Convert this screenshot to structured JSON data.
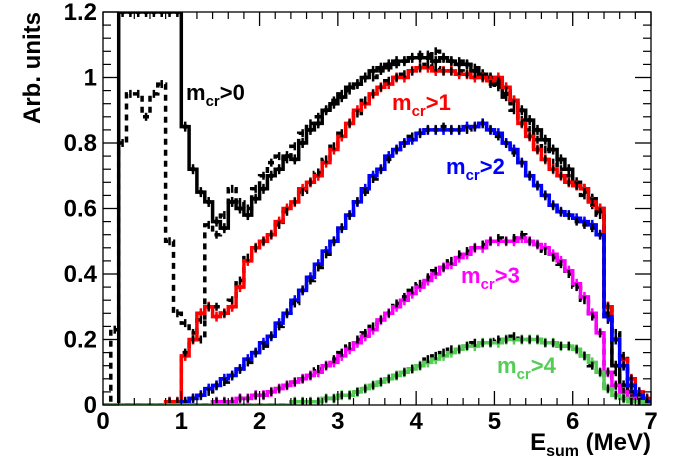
{
  "chart_data": {
    "type": "line",
    "title": "",
    "xlabel_main": "E",
    "xlabel_sub": "sum",
    "xlabel_unit": " (MeV)",
    "ylabel": "Arb. units",
    "xlim": [
      0,
      7
    ],
    "ylim": [
      0,
      1.2
    ],
    "x_ticks": [
      "0",
      "1",
      "2",
      "3",
      "4",
      "5",
      "6",
      "7"
    ],
    "y_ticks": [
      "0",
      "0.2",
      "0.4",
      "0.6",
      "0.8",
      "1",
      "1.2"
    ],
    "bin_width": 0.1,
    "bin_start": 0.0,
    "series": [
      {
        "label_main": "m",
        "label_sub": "cr",
        "label_tail": ">0",
        "color": "#000000",
        "simulation": [
          0,
          0,
          1.2,
          1.2,
          1.2,
          1.2,
          1.2,
          1.2,
          1.2,
          1.2,
          0.85,
          0.72,
          0.65,
          0.62,
          0.56,
          0.54,
          0.62,
          0.6,
          0.58,
          0.63,
          0.66,
          0.7,
          0.72,
          0.76,
          0.75,
          0.8,
          0.84,
          0.86,
          0.9,
          0.92,
          0.94,
          0.97,
          0.98,
          1.0,
          1.02,
          1.03,
          1.04,
          1.05,
          1.05,
          1.06,
          1.06,
          1.06,
          1.05,
          1.06,
          1.05,
          1.04,
          1.04,
          1.02,
          1.01,
          1.0,
          0.98,
          0.95,
          0.93,
          0.9,
          0.87,
          0.84,
          0.81,
          0.78,
          0.75,
          0.72,
          0.68,
          0.66,
          0.63,
          0.6,
          0.3,
          0.12,
          0.06,
          0.04,
          0.02,
          0.01
        ],
        "data": [
          0,
          0.23,
          0.8,
          0.95,
          0.95,
          0.88,
          0.95,
          0.98,
          0.5,
          0.28,
          0.25,
          0.22,
          0.2,
          0.55,
          0.52,
          0.58,
          0.66,
          0.62,
          0.6,
          0.66,
          0.7,
          0.74,
          0.76,
          0.75,
          0.79,
          0.83,
          0.86,
          0.88,
          0.9,
          0.93,
          0.95,
          0.96,
          0.98,
          1.0,
          1.0,
          1.02,
          1.03,
          1.04,
          1.05,
          1.06,
          1.07,
          1.07,
          1.08,
          1.06,
          1.05,
          1.05,
          1.04,
          1.03,
          1.01,
          1.0,
          0.97,
          0.94,
          0.9,
          0.87,
          0.84,
          0.81,
          0.78,
          0.74,
          0.72,
          0.7,
          0.67,
          0.64,
          0.61,
          0.58,
          0.26,
          0.1,
          0.05,
          0.03,
          0.02,
          0.01
        ]
      },
      {
        "label_main": "m",
        "label_sub": "cr",
        "label_tail": ">1",
        "color": "#ff0000",
        "simulation": [
          0,
          0,
          0,
          0,
          0,
          0,
          0,
          0,
          0.01,
          0.01,
          0.15,
          0.2,
          0.28,
          0.3,
          0.27,
          0.28,
          0.3,
          0.36,
          0.44,
          0.48,
          0.5,
          0.52,
          0.56,
          0.6,
          0.62,
          0.66,
          0.68,
          0.7,
          0.74,
          0.78,
          0.82,
          0.86,
          0.9,
          0.92,
          0.95,
          0.97,
          0.98,
          1.0,
          1.0,
          1.02,
          1.03,
          1.03,
          1.02,
          1.02,
          1.02,
          1.01,
          1.01,
          1.0,
          1.0,
          0.99,
          1.0,
          0.97,
          0.93,
          0.86,
          0.82,
          0.78,
          0.75,
          0.72,
          0.7,
          0.68,
          0.67,
          0.66,
          0.62,
          0.6,
          0.3,
          0.2,
          0.14,
          0.08,
          0.04,
          0.02
        ],
        "data": [
          0,
          0,
          0,
          0,
          0,
          0,
          0,
          0,
          0.01,
          0.01,
          0.16,
          0.2,
          0.26,
          0.3,
          0.3,
          0.28,
          0.32,
          0.38,
          0.45,
          0.48,
          0.5,
          0.52,
          0.55,
          0.59,
          0.62,
          0.65,
          0.68,
          0.71,
          0.75,
          0.79,
          0.83,
          0.86,
          0.89,
          0.93,
          0.95,
          0.97,
          0.99,
          1.0,
          1.01,
          1.02,
          1.03,
          1.04,
          1.03,
          1.02,
          1.02,
          1.02,
          1.01,
          1.01,
          1.0,
          0.98,
          0.99,
          0.96,
          0.92,
          0.86,
          0.82,
          0.78,
          0.75,
          0.72,
          0.7,
          0.68,
          0.67,
          0.65,
          0.62,
          0.59,
          0.3,
          0.22,
          0.15,
          0.08,
          0.04,
          0.02
        ]
      },
      {
        "label_main": "m",
        "label_sub": "cr",
        "label_tail": ">2",
        "color": "#0000ff",
        "simulation": [
          0,
          0,
          0,
          0,
          0,
          0,
          0,
          0,
          0,
          0,
          0.01,
          0.02,
          0.03,
          0.05,
          0.06,
          0.08,
          0.09,
          0.11,
          0.14,
          0.16,
          0.19,
          0.21,
          0.25,
          0.28,
          0.32,
          0.35,
          0.39,
          0.43,
          0.47,
          0.5,
          0.54,
          0.58,
          0.62,
          0.66,
          0.7,
          0.72,
          0.76,
          0.78,
          0.8,
          0.81,
          0.83,
          0.84,
          0.84,
          0.84,
          0.84,
          0.84,
          0.85,
          0.85,
          0.86,
          0.84,
          0.83,
          0.8,
          0.78,
          0.74,
          0.7,
          0.67,
          0.64,
          0.61,
          0.59,
          0.58,
          0.57,
          0.56,
          0.55,
          0.52,
          0.27,
          0.2,
          0.12,
          0.06,
          0.03,
          0.01
        ],
        "data": [
          0,
          0,
          0,
          0,
          0,
          0,
          0,
          0,
          0,
          0,
          0.01,
          0.02,
          0.03,
          0.04,
          0.06,
          0.07,
          0.09,
          0.11,
          0.13,
          0.16,
          0.18,
          0.21,
          0.24,
          0.28,
          0.31,
          0.35,
          0.38,
          0.42,
          0.46,
          0.5,
          0.54,
          0.58,
          0.62,
          0.65,
          0.69,
          0.72,
          0.75,
          0.78,
          0.8,
          0.82,
          0.83,
          0.84,
          0.84,
          0.85,
          0.84,
          0.84,
          0.84,
          0.85,
          0.86,
          0.84,
          0.82,
          0.8,
          0.77,
          0.74,
          0.7,
          0.67,
          0.64,
          0.61,
          0.59,
          0.58,
          0.56,
          0.55,
          0.54,
          0.52,
          0.28,
          0.2,
          0.12,
          0.06,
          0.03,
          0.01
        ]
      },
      {
        "label_main": "m",
        "label_sub": "cr",
        "label_tail": ">3",
        "color": "#ff00ff",
        "simulation": [
          0,
          0,
          0,
          0,
          0,
          0,
          0,
          0,
          0,
          0,
          0,
          0,
          0,
          0,
          0.01,
          0.01,
          0.01,
          0.02,
          0.02,
          0.03,
          0.03,
          0.04,
          0.05,
          0.06,
          0.07,
          0.08,
          0.09,
          0.1,
          0.12,
          0.13,
          0.15,
          0.17,
          0.19,
          0.21,
          0.23,
          0.26,
          0.28,
          0.3,
          0.32,
          0.34,
          0.36,
          0.38,
          0.4,
          0.42,
          0.43,
          0.45,
          0.46,
          0.48,
          0.48,
          0.5,
          0.5,
          0.5,
          0.5,
          0.51,
          0.5,
          0.49,
          0.48,
          0.46,
          0.44,
          0.41,
          0.37,
          0.33,
          0.28,
          0.22,
          0.1,
          0.06,
          0.04,
          0.02,
          0.01,
          0
        ],
        "data": [
          0,
          0,
          0,
          0,
          0,
          0,
          0,
          0,
          0,
          0,
          0,
          0,
          0,
          0,
          0.01,
          0.01,
          0.01,
          0.02,
          0.02,
          0.03,
          0.03,
          0.04,
          0.05,
          0.06,
          0.07,
          0.08,
          0.09,
          0.11,
          0.12,
          0.14,
          0.16,
          0.18,
          0.2,
          0.22,
          0.24,
          0.26,
          0.28,
          0.31,
          0.33,
          0.35,
          0.37,
          0.39,
          0.41,
          0.42,
          0.44,
          0.46,
          0.47,
          0.48,
          0.49,
          0.5,
          0.51,
          0.5,
          0.51,
          0.52,
          0.5,
          0.49,
          0.47,
          0.45,
          0.43,
          0.4,
          0.36,
          0.32,
          0.27,
          0.22,
          0.1,
          0.06,
          0.04,
          0.02,
          0.01,
          0
        ]
      },
      {
        "label_main": "m",
        "label_sub": "cr",
        "label_tail": ">4",
        "color": "#55cc55",
        "simulation": [
          0,
          0,
          0,
          0,
          0,
          0,
          0,
          0,
          0,
          0,
          0,
          0,
          0,
          0,
          0,
          0,
          0,
          0,
          0,
          0,
          0,
          0,
          0,
          0,
          0.01,
          0.01,
          0.01,
          0.01,
          0.02,
          0.02,
          0.03,
          0.03,
          0.04,
          0.05,
          0.06,
          0.07,
          0.08,
          0.09,
          0.1,
          0.11,
          0.12,
          0.13,
          0.14,
          0.15,
          0.16,
          0.17,
          0.18,
          0.18,
          0.19,
          0.19,
          0.19,
          0.2,
          0.2,
          0.2,
          0.2,
          0.2,
          0.19,
          0.19,
          0.18,
          0.18,
          0.17,
          0.15,
          0.13,
          0.1,
          0.05,
          0.03,
          0.02,
          0.01,
          0.01,
          0
        ],
        "data": [
          0,
          0,
          0,
          0,
          0,
          0,
          0,
          0,
          0,
          0,
          0,
          0,
          0,
          0,
          0,
          0,
          0,
          0,
          0,
          0,
          0,
          0,
          0,
          0,
          0.01,
          0.01,
          0.01,
          0.01,
          0.02,
          0.02,
          0.03,
          0.03,
          0.04,
          0.05,
          0.06,
          0.07,
          0.08,
          0.09,
          0.1,
          0.11,
          0.12,
          0.14,
          0.15,
          0.16,
          0.17,
          0.17,
          0.18,
          0.19,
          0.19,
          0.19,
          0.2,
          0.2,
          0.21,
          0.2,
          0.2,
          0.2,
          0.19,
          0.19,
          0.18,
          0.18,
          0.17,
          0.15,
          0.12,
          0.1,
          0.05,
          0.03,
          0.02,
          0.01,
          0.01,
          0
        ]
      }
    ]
  }
}
